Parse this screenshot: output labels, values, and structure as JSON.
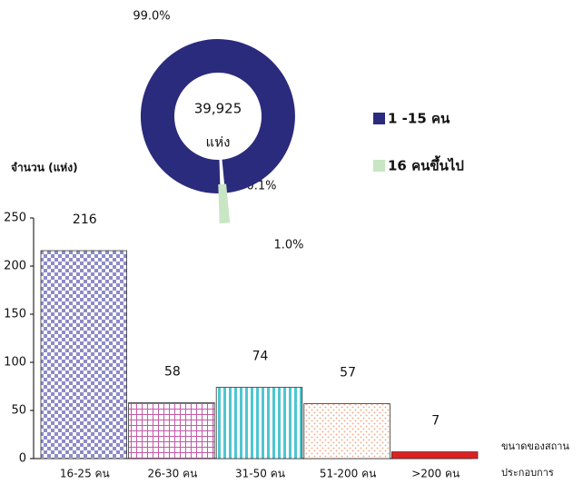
{
  "chart_data": [
    {
      "type": "donut",
      "center_value": "39,925",
      "center_unit": "แห่ง",
      "categories": [
        "1 -15 คน",
        "16 คนขึ้นไป"
      ],
      "values": [
        99.0,
        1.0
      ],
      "value_labels": [
        "99.0%",
        "1.0%"
      ],
      "colors": [
        "#2b2b7d",
        "#c8e6c4"
      ],
      "annotation": "0.1%"
    },
    {
      "type": "bar",
      "y_label": "จำนวน (แห่ง)",
      "x_label": [
        "ขนาดของสถาน",
        "ประกอบการ"
      ],
      "categories": [
        "16-25 คน",
        "26-30 คน",
        "31-50 คน",
        "51-200 คน",
        ">200 คน"
      ],
      "values": [
        216,
        58,
        74,
        57,
        7
      ],
      "colors": [
        "#8c8cc8",
        "#c05aa8",
        "#4fc6d0",
        "#f2a27a",
        "#e02020"
      ],
      "ylim": [
        0,
        250
      ],
      "yticks": [
        0,
        50,
        100,
        150,
        200,
        250
      ]
    }
  ]
}
